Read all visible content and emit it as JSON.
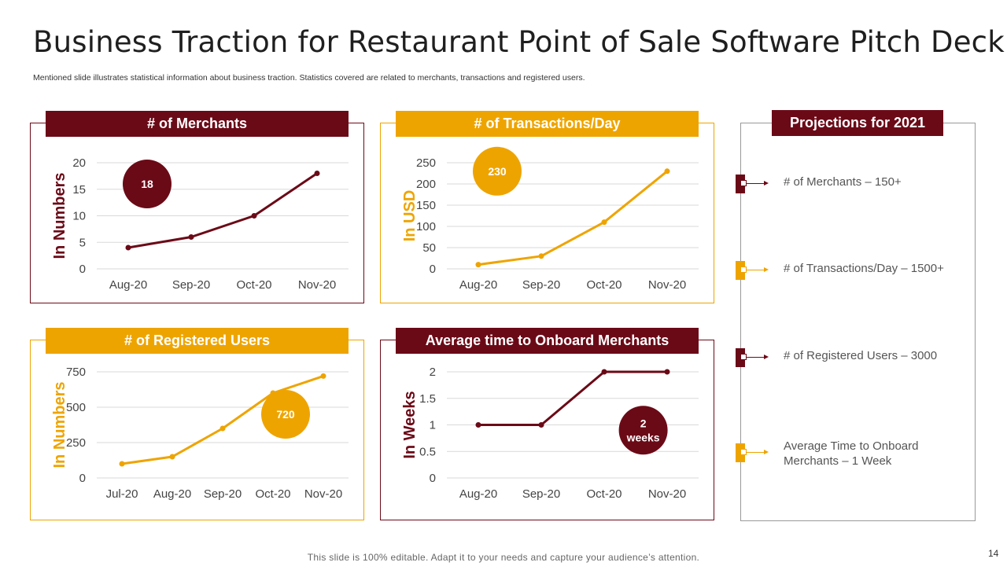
{
  "title": "Business Traction for Restaurant Point of Sale Software Pitch Deck",
  "subtitle": "Mentioned slide illustrates statistical information about business traction. Statistics covered are related to merchants, transactions and registered users.",
  "colors": {
    "maroon": "#6b0a17",
    "gold": "#eea400"
  },
  "chart_data": [
    {
      "type": "line",
      "title": "# of Merchants",
      "ylabel": "In Numbers",
      "xlabel": "",
      "categories": [
        "Aug-20",
        "Sep-20",
        "Oct-20",
        "Nov-20"
      ],
      "values": [
        4,
        6,
        10,
        18
      ],
      "ylim": [
        0,
        20
      ],
      "yticks": [
        0,
        5,
        10,
        15,
        20
      ],
      "ytick_labels": [
        "0",
        "5",
        "10",
        "15",
        "20"
      ],
      "grid": true,
      "color": "#6b0a17",
      "badge": "18"
    },
    {
      "type": "line",
      "title": "# of Transactions/Day",
      "ylabel": "In USD",
      "xlabel": "",
      "categories": [
        "Aug-20",
        "Sep-20",
        "Oct-20",
        "Nov-20"
      ],
      "values": [
        10,
        30,
        110,
        230
      ],
      "ylim": [
        0,
        250
      ],
      "yticks": [
        0,
        50,
        100,
        150,
        200,
        250
      ],
      "ytick_labels": [
        "0",
        "50",
        "100",
        "150",
        "200",
        "250"
      ],
      "grid": true,
      "color": "#eea400",
      "badge": "230"
    },
    {
      "type": "line",
      "title": "# of Registered Users",
      "ylabel": "In Numbers",
      "xlabel": "",
      "categories": [
        "Jul-20",
        "Aug-20",
        "Sep-20",
        "Oct-20",
        "Nov-20"
      ],
      "values": [
        100,
        150,
        350,
        600,
        720
      ],
      "ylim": [
        0,
        750
      ],
      "yticks": [
        0,
        250,
        500,
        750
      ],
      "ytick_labels": [
        "0",
        "250",
        "500",
        "750"
      ],
      "grid": true,
      "color": "#eea400",
      "badge": "720"
    },
    {
      "type": "line",
      "title": "Average time to Onboard Merchants",
      "ylabel": "In Weeks",
      "xlabel": "",
      "categories": [
        "Aug-20",
        "Sep-20",
        "Oct-20",
        "Nov-20"
      ],
      "values": [
        1,
        1,
        2,
        2
      ],
      "ylim": [
        0,
        2
      ],
      "yticks": [
        0,
        0.5,
        1,
        1.5,
        2
      ],
      "ytick_labels": [
        "0",
        "0.5",
        "1",
        "1.5",
        "2"
      ],
      "grid": true,
      "color": "#6b0a17",
      "badge": "2 weeks"
    }
  ],
  "projections": {
    "title": "Projections for 2021",
    "items": [
      {
        "text": "# of Merchants  – 150+",
        "color": "#6b0a17"
      },
      {
        "text": "# of Transactions/Day  – 1500+",
        "color": "#eea400"
      },
      {
        "text": "# of Registered Users – 3000",
        "color": "#6b0a17"
      },
      {
        "text": "Average Time to Onboard Merchants – 1 Week",
        "color": "#eea400"
      }
    ]
  },
  "footer": "This slide is 100% editable. Adapt it to your needs and capture your audience’s attention.",
  "page_number": "14"
}
